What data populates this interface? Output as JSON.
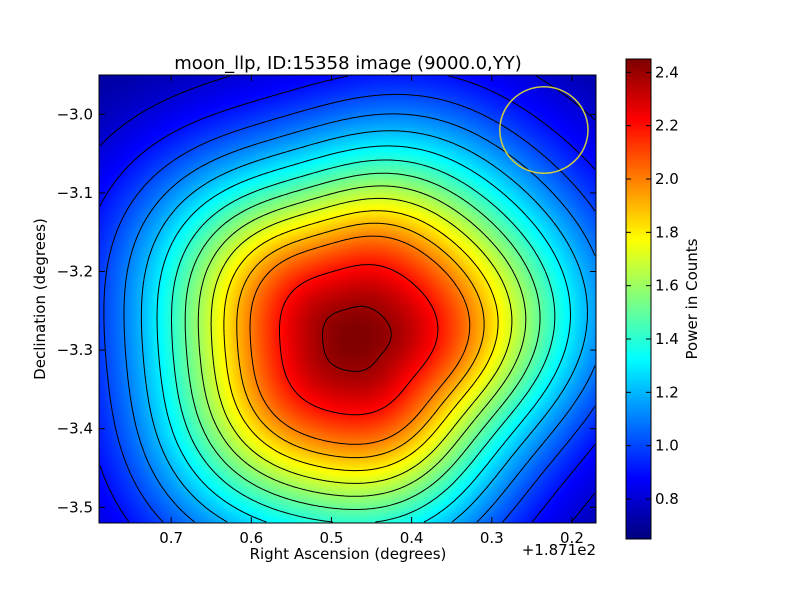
{
  "chart_data": {
    "type": "heatmap",
    "title": "moon_llp, ID:15358 image (9000.0,YY)",
    "xlabel": "Right Ascension (degrees)",
    "ylabel": "Declination (degrees)",
    "x_offset_label": "+1.871e2",
    "xlim": [
      0.79,
      0.17
    ],
    "ylim": [
      -3.52,
      -2.95
    ],
    "x_ticks": [
      0.7,
      0.6,
      0.5,
      0.4,
      0.3,
      0.2
    ],
    "x_tick_labels": [
      "0.7",
      "0.6",
      "0.5",
      "0.4",
      "0.3",
      "0.2"
    ],
    "y_ticks": [
      -3.0,
      -3.1,
      -3.2,
      -3.3,
      -3.4,
      -3.5
    ],
    "y_tick_labels": [
      "−3.0",
      "−3.1",
      "−3.2",
      "−3.3",
      "−3.4",
      "−3.5"
    ],
    "colorbar": {
      "label": "Power in Counts",
      "range": [
        0.65,
        2.45
      ],
      "ticks": [
        0.8,
        1.0,
        1.2,
        1.4,
        1.6,
        1.8,
        2.0,
        2.2,
        2.4
      ],
      "tick_labels": [
        "0.8",
        "1.0",
        "1.2",
        "1.4",
        "1.6",
        "1.8",
        "2.0",
        "2.2",
        "2.4"
      ],
      "colormap": "jet"
    },
    "peak": {
      "ra": 0.47,
      "dec": -3.285,
      "value": 2.45
    },
    "contour_levels": [
      0.8,
      0.9,
      1.0,
      1.1,
      1.2,
      1.3,
      1.4,
      1.5,
      1.6,
      1.7,
      1.8,
      1.9,
      2.0,
      2.2,
      2.4
    ],
    "beam_circle": {
      "ra": 0.235,
      "dec": -3.02,
      "radius_deg": 0.055,
      "color": "#cccc44"
    },
    "grid": false
  }
}
